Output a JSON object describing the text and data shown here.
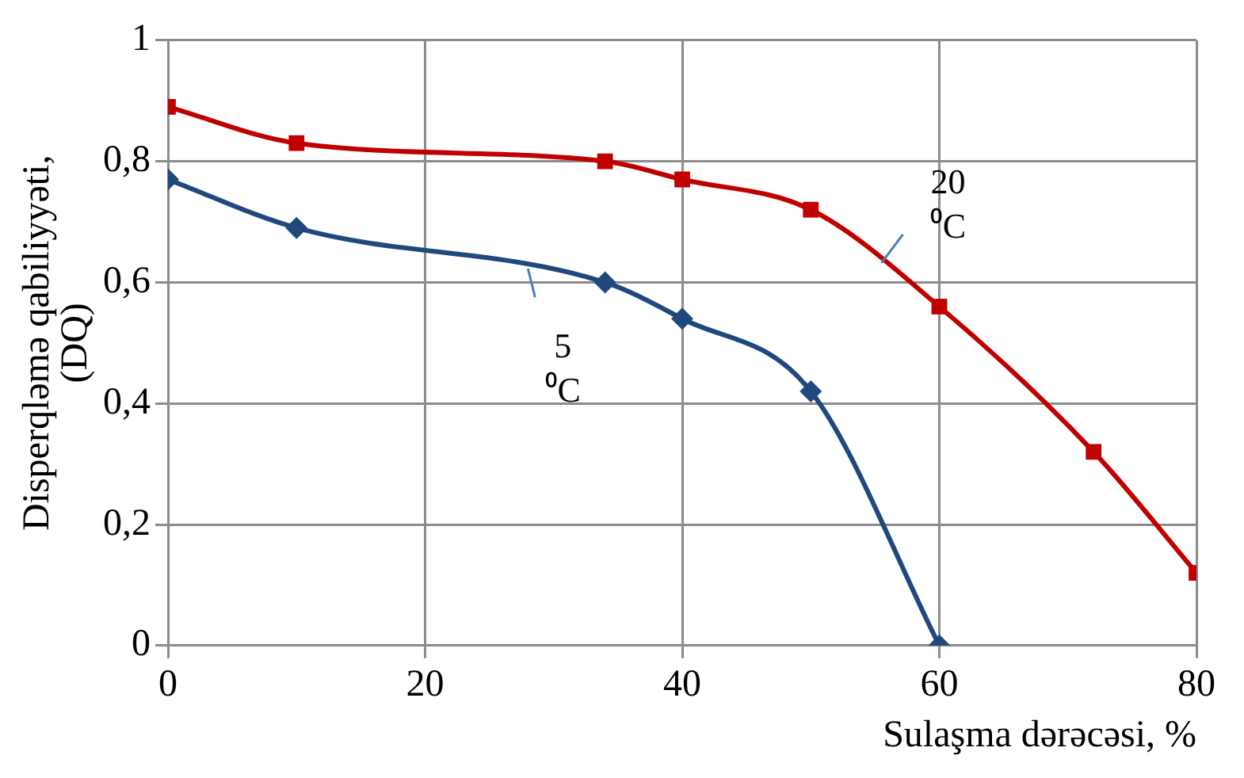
{
  "chart_data": {
    "type": "line",
    "xlabel": "Sulaşma dərəcəsi, %",
    "ylabel": "Disperqləmə qabiliyyəti, (DQ)",
    "xlim": [
      0,
      80
    ],
    "xticks": [
      0,
      20,
      40,
      60,
      80
    ],
    "ylim": [
      0,
      1
    ],
    "yticks": [
      {
        "value": 0,
        "label": "0"
      },
      {
        "value": 0.2,
        "label": "0,2"
      },
      {
        "value": 0.4,
        "label": "0,4"
      },
      {
        "value": 0.6,
        "label": "0,6"
      },
      {
        "value": 0.8,
        "label": "0,8"
      },
      {
        "value": 1,
        "label": "1"
      }
    ],
    "grid": true,
    "legend": false,
    "series": [
      {
        "name": "20 ⁰C",
        "color": "#c00000",
        "marker": "square",
        "x": [
          0,
          10,
          34,
          40,
          50,
          60,
          72,
          80
        ],
        "values": [
          0.89,
          0.83,
          0.8,
          0.77,
          0.72,
          0.56,
          0.32,
          0.12
        ]
      },
      {
        "name": "5 ⁰C",
        "color": "#1f497d",
        "marker": "diamond",
        "x": [
          0,
          10,
          34,
          40,
          50,
          60
        ],
        "values": [
          0.77,
          0.69,
          0.6,
          0.54,
          0.42,
          0
        ]
      }
    ]
  }
}
